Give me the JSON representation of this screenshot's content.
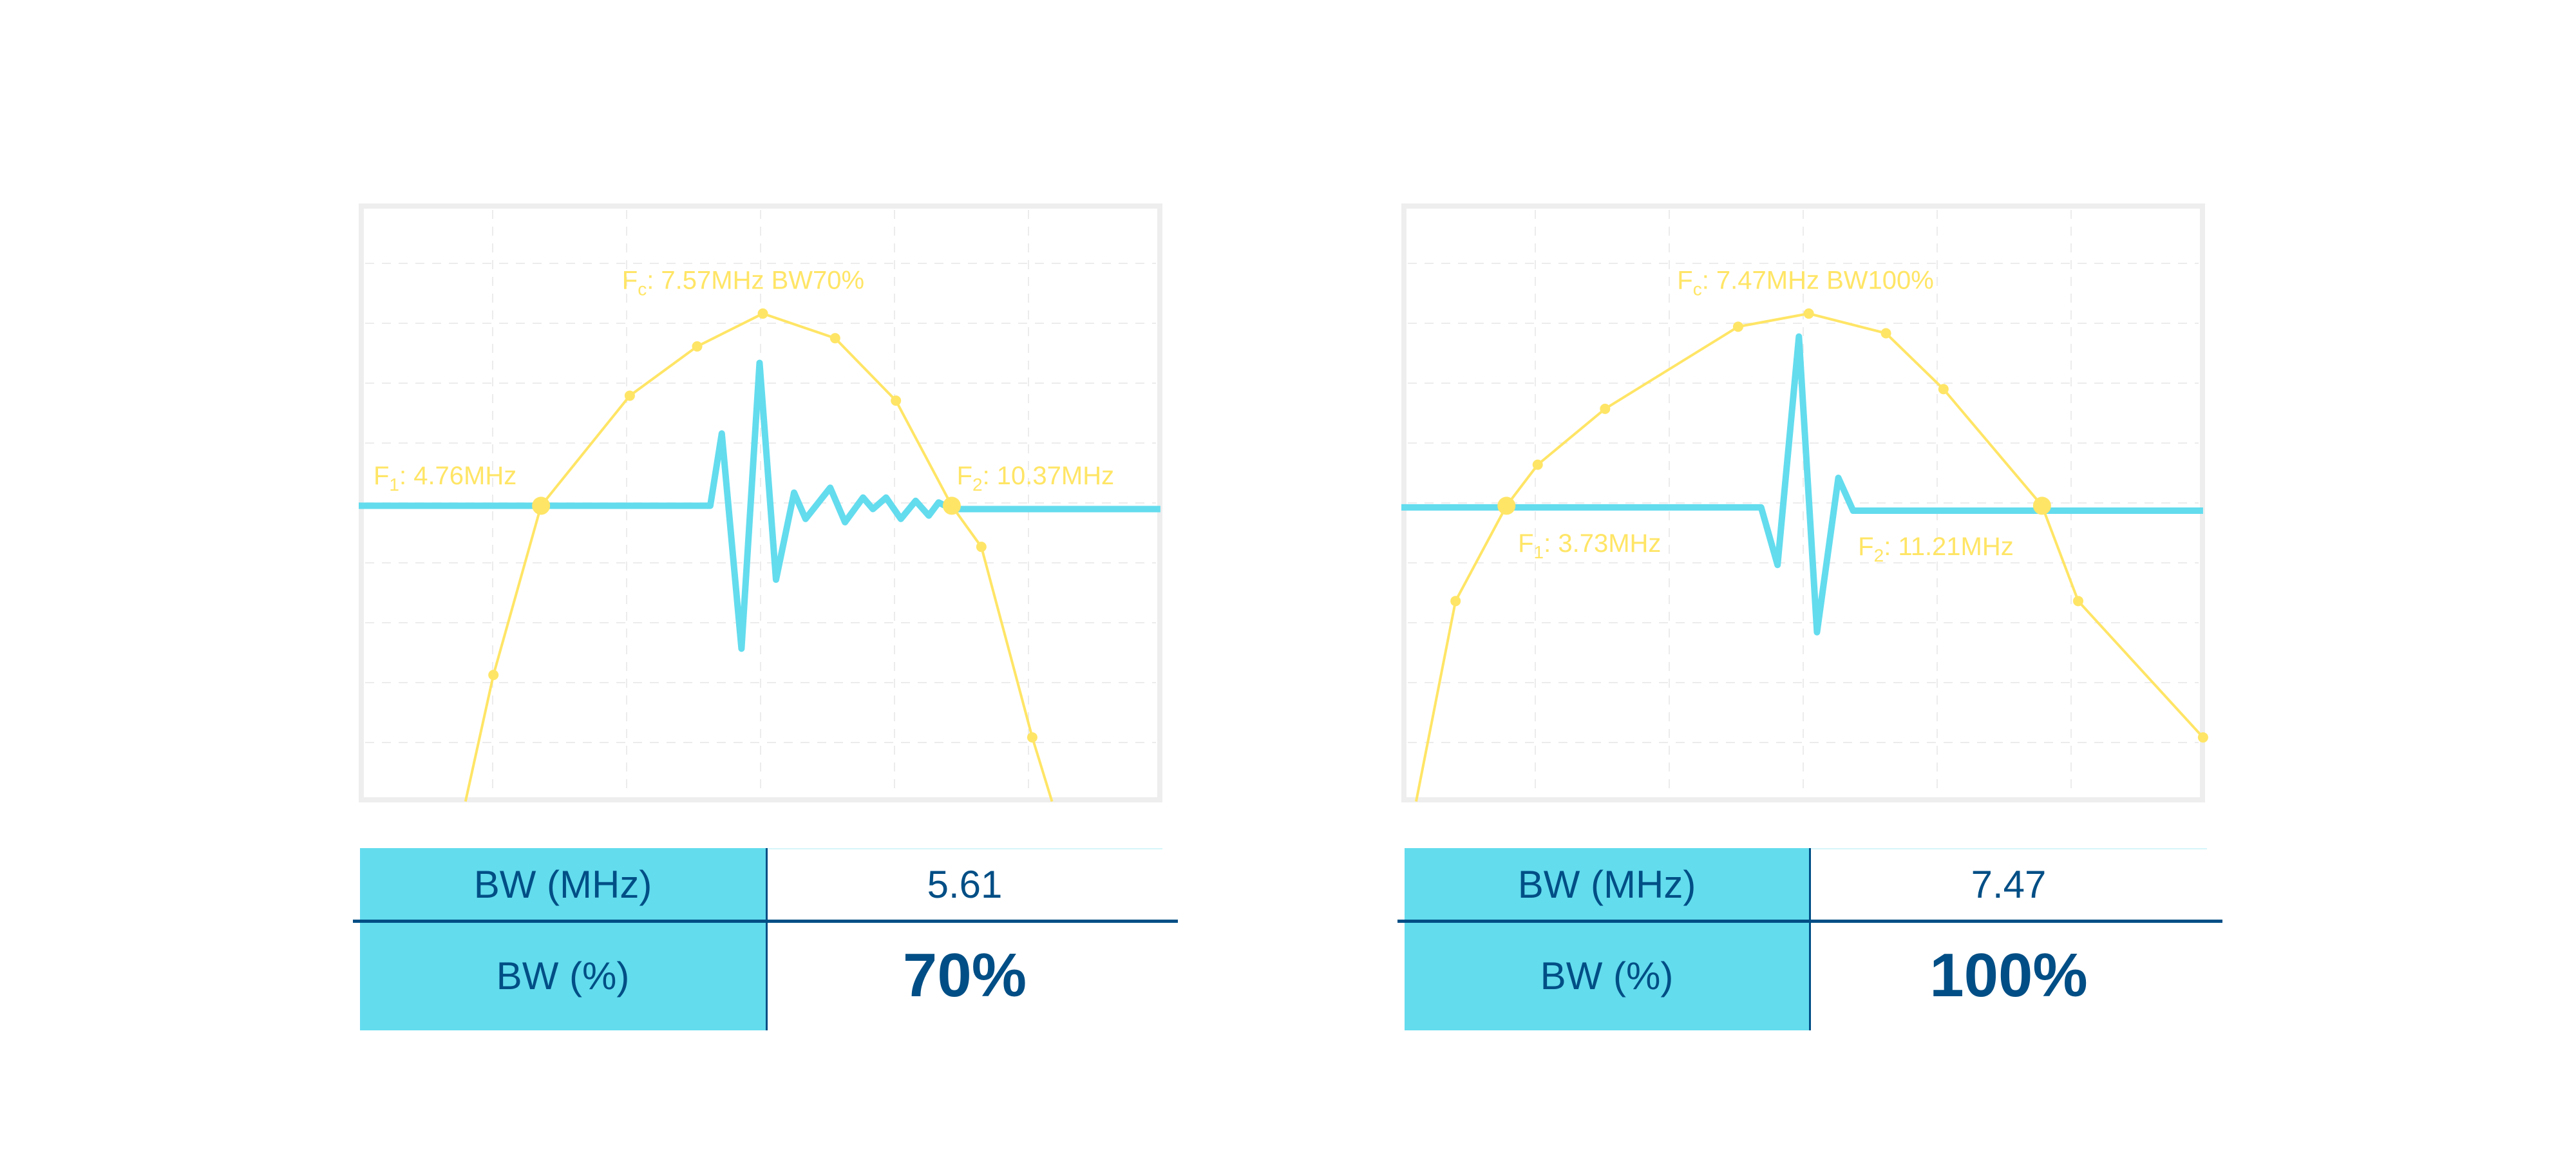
{
  "colors": {
    "spectrum": "#FFE566",
    "pulse": "#63DCEE",
    "text_dark": "#004E85",
    "highlight": "#E5615C",
    "frame": "#EEEEEE"
  },
  "chart_data": [
    {
      "type": "line",
      "labels": {
        "fc": {
          "main": "F",
          "sub": "c",
          "rest": ": 7.57MHz BW70%"
        },
        "f1": {
          "main": "F",
          "sub": "1",
          "rest": ": 4.76MHz"
        },
        "f2": {
          "main": "F",
          "sub": "2",
          "rest": ": 10.37MHz"
        }
      },
      "f1_mhz": 4.76,
      "f2_mhz": 10.37,
      "fc_mhz": 7.57,
      "bw_percent": 70
    },
    {
      "type": "line",
      "labels": {
        "fc": {
          "main": "F",
          "sub": "c",
          "rest": ": 7.47MHz BW100%"
        },
        "f1": {
          "main": "F",
          "sub": "1",
          "rest": ": 3.73MHz"
        },
        "f2": {
          "main": "F",
          "sub": "2",
          "rest": ": 11.21MHz"
        }
      },
      "f1_mhz": 3.73,
      "f2_mhz": 11.21,
      "fc_mhz": 7.47,
      "bw_percent": 100
    }
  ],
  "tables": [
    {
      "row1_label": "BW (MHz)",
      "row1_value": "5.61",
      "row2_label": "BW (%)",
      "row2_value": "70%"
    },
    {
      "row1_label": "BW (MHz)",
      "row1_value": "7.47",
      "row2_label": "BW (%)",
      "row2_value": "100%"
    }
  ]
}
